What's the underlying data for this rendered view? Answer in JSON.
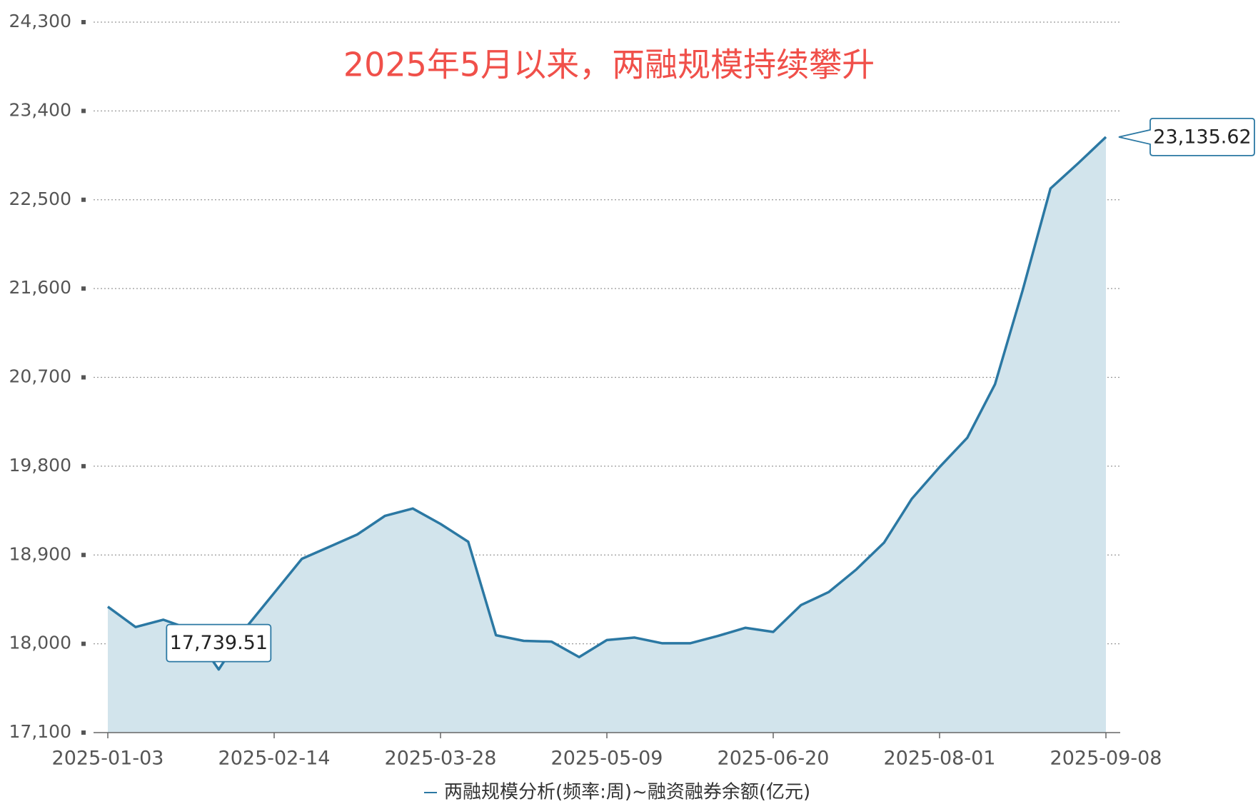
{
  "chart_data": {
    "type": "line",
    "title": "2025年5月以来，两融规模持续攀升",
    "categories": [
      "2025-01-03",
      null,
      null,
      null,
      null,
      null,
      "2025-02-14",
      null,
      null,
      null,
      null,
      null,
      "2025-03-28",
      null,
      null,
      null,
      null,
      null,
      "2025-05-09",
      null,
      null,
      null,
      null,
      null,
      "2025-06-20",
      null,
      null,
      null,
      null,
      null,
      "2025-08-01",
      null,
      null,
      null,
      null,
      null,
      "2025-09-08"
    ],
    "series": [
      {
        "name": "两融规模分析(频率:周)~融资融券余额(亿元)",
        "color": "#2b78a3",
        "fill": "#d2e4ec",
        "values": [
          18376,
          18170,
          18244,
          18145,
          17739.51,
          18170,
          18515,
          18861,
          18984,
          19108,
          19297,
          19371,
          19215,
          19034,
          18087,
          18030,
          18022,
          17865,
          18038,
          18063,
          18005,
          18005,
          18079,
          18162,
          18120,
          18392,
          18524,
          18754,
          19026,
          19470,
          19791,
          20088,
          20631,
          21586,
          22614,
          22870,
          23135.62
        ],
        "value_labels": [
          null,
          null,
          null,
          null,
          "17,739.51",
          null,
          null,
          null,
          null,
          null,
          null,
          null,
          null,
          null,
          null,
          null,
          null,
          null,
          null,
          null,
          null,
          null,
          null,
          null,
          null,
          null,
          null,
          null,
          null,
          null,
          null,
          null,
          null,
          null,
          null,
          null,
          "23,135.62"
        ]
      }
    ],
    "ylim": [
      17100,
      24300
    ],
    "yticks": [
      {
        "value": 17100,
        "label": "17,100"
      },
      {
        "value": 18000,
        "label": "18,000"
      },
      {
        "value": 18900,
        "label": "18,900"
      },
      {
        "value": 19800,
        "label": "19,800"
      },
      {
        "value": 20700,
        "label": "20,700"
      },
      {
        "value": 21600,
        "label": "21,600"
      },
      {
        "value": 22500,
        "label": "22,500"
      },
      {
        "value": 23400,
        "label": "23,400"
      },
      {
        "value": 24300,
        "label": "24,300"
      }
    ],
    "grid": true,
    "legend": "bottom"
  }
}
